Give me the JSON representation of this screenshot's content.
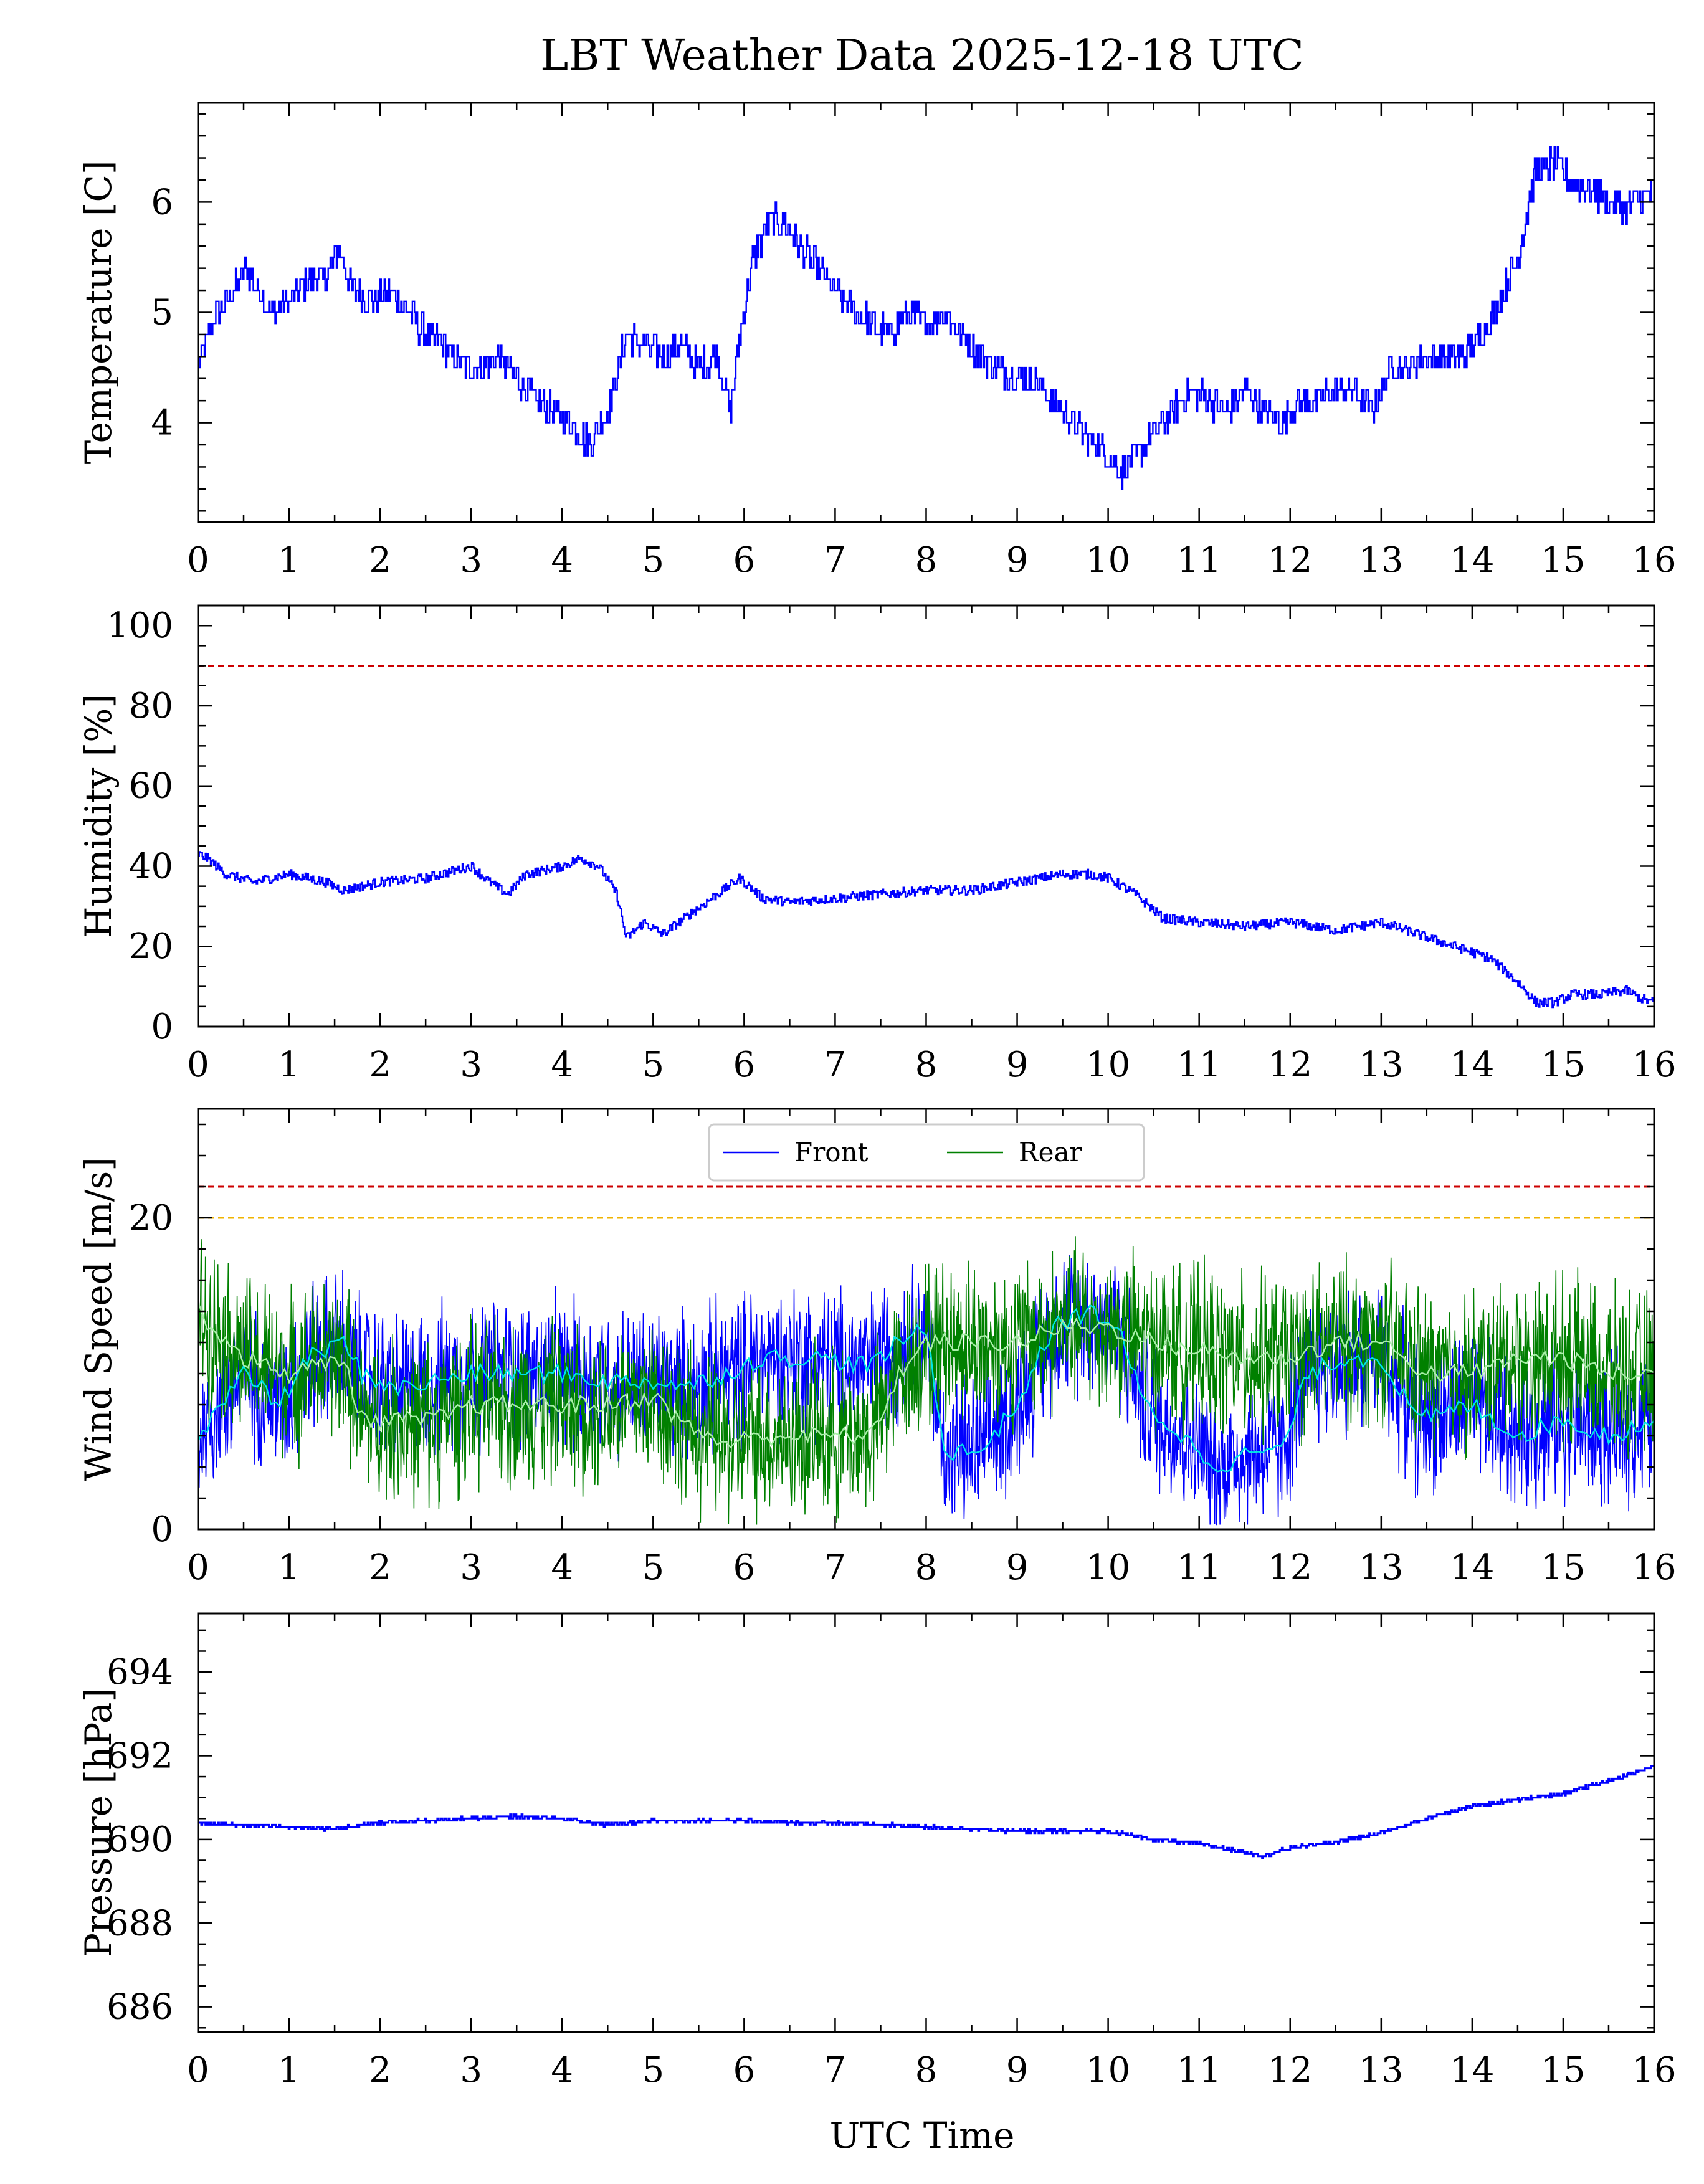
{
  "title": "LBT Weather Data 2025-12-18 UTC",
  "xlabel": "UTC Time",
  "colors": {
    "front": "#0000ff",
    "rear": "#008000",
    "front_avg": "#00e5e5",
    "rear_avg": "#a8f0a8",
    "danger": "#cc0000",
    "warning": "#f0b400"
  },
  "chart_data": [
    {
      "id": "temperature",
      "type": "line",
      "title": "LBT Weather Data 2025-12-18 UTC",
      "ylabel": "Temperature [C]",
      "xlim": [
        0,
        16
      ],
      "ylim": [
        3.1,
        6.9
      ],
      "xticks": [
        0,
        1,
        2,
        3,
        4,
        5,
        6,
        7,
        8,
        9,
        10,
        11,
        12,
        13,
        14,
        15,
        16
      ],
      "yticks": [
        4,
        5,
        6
      ],
      "series": [
        {
          "name": "Temperature",
          "color": "#0000ff",
          "x": [
            0,
            0.2,
            0.4,
            0.5,
            0.6,
            0.8,
            1.0,
            1.2,
            1.4,
            1.55,
            1.7,
            1.9,
            2.1,
            2.3,
            2.5,
            2.7,
            2.9,
            3.1,
            3.3,
            3.5,
            3.7,
            3.9,
            4.1,
            4.3,
            4.5,
            4.7,
            4.9,
            5.1,
            5.3,
            5.5,
            5.7,
            5.85,
            5.95,
            6.1,
            6.3,
            6.45,
            6.6,
            6.8,
            7.0,
            7.2,
            7.4,
            7.6,
            7.8,
            8.0,
            8.2,
            8.4,
            8.6,
            8.8,
            9.0,
            9.2,
            9.4,
            9.6,
            9.8,
            10.0,
            10.15,
            10.3,
            10.5,
            10.7,
            10.9,
            11.1,
            11.3,
            11.5,
            11.7,
            11.9,
            12.1,
            12.3,
            12.5,
            12.7,
            12.9,
            13.1,
            13.3,
            13.5,
            13.7,
            13.9,
            14.1,
            14.3,
            14.5,
            14.7,
            14.9,
            15.1,
            15.3,
            15.5,
            15.7,
            15.9,
            16.0
          ],
          "y": [
            4.5,
            5.0,
            5.2,
            5.4,
            5.3,
            5.0,
            5.1,
            5.3,
            5.3,
            5.6,
            5.2,
            5.1,
            5.2,
            5.0,
            4.8,
            4.7,
            4.5,
            4.5,
            4.6,
            4.4,
            4.2,
            4.1,
            4.0,
            3.8,
            4.1,
            4.8,
            4.7,
            4.6,
            4.7,
            4.5,
            4.6,
            4.1,
            4.8,
            5.5,
            5.85,
            5.8,
            5.6,
            5.4,
            5.2,
            5.0,
            4.9,
            4.8,
            5.0,
            4.9,
            5.0,
            4.8,
            4.6,
            4.5,
            4.4,
            4.4,
            4.2,
            4.0,
            3.85,
            3.7,
            3.55,
            3.7,
            3.9,
            4.1,
            4.3,
            4.2,
            4.1,
            4.3,
            4.1,
            4.0,
            4.2,
            4.2,
            4.3,
            4.3,
            4.1,
            4.5,
            4.5,
            4.6,
            4.6,
            4.6,
            4.8,
            5.1,
            5.5,
            6.3,
            6.35,
            6.2,
            6.1,
            6.0,
            5.95,
            6.05,
            6.1
          ]
        }
      ],
      "reference_lines": []
    },
    {
      "id": "humidity",
      "type": "line",
      "ylabel": "Humidity [%]",
      "xlim": [
        0,
        16
      ],
      "ylim": [
        0,
        105
      ],
      "xticks": [
        0,
        1,
        2,
        3,
        4,
        5,
        6,
        7,
        8,
        9,
        10,
        11,
        12,
        13,
        14,
        15,
        16
      ],
      "yticks": [
        0,
        20,
        40,
        60,
        80,
        100
      ],
      "series": [
        {
          "name": "Humidity",
          "color": "#0000ff",
          "x": [
            0,
            0.1,
            0.3,
            0.6,
            1.0,
            1.4,
            1.6,
            2.0,
            2.5,
            3.0,
            3.2,
            3.4,
            3.6,
            4.0,
            4.2,
            4.4,
            4.6,
            4.7,
            4.9,
            5.1,
            5.4,
            5.7,
            5.95,
            6.2,
            6.5,
            7.0,
            7.5,
            8.0,
            8.5,
            9.0,
            9.5,
            9.8,
            10.0,
            10.3,
            10.6,
            11.0,
            11.5,
            12.0,
            12.5,
            13.0,
            13.4,
            13.8,
            14.2,
            14.5,
            14.7,
            14.9,
            15.1,
            15.4,
            15.7,
            15.85,
            16.0
          ],
          "y": [
            43,
            42,
            38,
            36,
            38,
            36,
            34,
            36,
            37,
            40,
            36,
            33,
            38,
            40,
            42,
            40,
            33,
            22,
            26,
            23,
            28,
            33,
            37,
            32,
            31,
            32,
            33,
            34,
            34,
            36,
            38,
            38,
            37,
            33,
            27,
            26,
            25,
            26,
            24,
            26,
            23,
            20,
            17,
            11,
            6,
            6,
            8,
            8,
            9,
            7,
            6
          ]
        }
      ],
      "reference_lines": [
        {
          "y": 90,
          "color": "#cc0000",
          "style": "dashed"
        }
      ]
    },
    {
      "id": "wind",
      "type": "line",
      "ylabel": "Wind Speed [m/s]",
      "xlim": [
        0,
        16
      ],
      "ylim": [
        0,
        27
      ],
      "xticks": [
        0,
        1,
        2,
        3,
        4,
        5,
        6,
        7,
        8,
        9,
        10,
        11,
        12,
        13,
        14,
        15,
        16
      ],
      "yticks": [
        0,
        20
      ],
      "legend": {
        "entries": [
          "Front",
          "Rear"
        ],
        "position": "upper center"
      },
      "series": [
        {
          "name": "Front",
          "color": "#0000ff",
          "x": [
            0,
            0.5,
            0.9,
            1.2,
            1.6,
            1.8,
            2.2,
            3.0,
            3.5,
            4.0,
            4.5,
            5.0,
            5.4,
            5.8,
            6.2,
            6.8,
            7.4,
            7.7,
            8.0,
            8.2,
            8.6,
            9.0,
            9.4,
            9.8,
            10.1,
            10.4,
            10.8,
            11.2,
            11.6,
            11.9,
            12.2,
            12.6,
            13.0,
            13.4,
            14.0,
            14.5,
            15.0,
            15.5,
            16.0
          ],
          "y": [
            6,
            10,
            8,
            11,
            12,
            10,
            9,
            10,
            10,
            10,
            9.5,
            9.5,
            9.2,
            10,
            11,
            11,
            10.5,
            12,
            13,
            5,
            5,
            8,
            13,
            14,
            13,
            8,
            6,
            4,
            5,
            5,
            10,
            11,
            11,
            7,
            8,
            6,
            7,
            6,
            7
          ]
        },
        {
          "name": "Rear",
          "color": "#008000",
          "x": [
            0,
            0.5,
            1.0,
            1.6,
            1.8,
            2.2,
            2.6,
            3.0,
            3.4,
            4.0,
            4.5,
            5.0,
            5.4,
            5.8,
            6.2,
            6.8,
            7.4,
            7.7,
            8.0,
            8.4,
            9.0,
            9.5,
            10.0,
            10.5,
            11.0,
            11.5,
            12.0,
            12.5,
            13.0,
            13.5,
            14.0,
            14.5,
            15.0,
            15.5,
            16.0
          ],
          "y": [
            14,
            11,
            10,
            11,
            7,
            7,
            7,
            8,
            8,
            8,
            8,
            8.5,
            6.5,
            5.5,
            6,
            6,
            6,
            10,
            12,
            12,
            12,
            13,
            13,
            12,
            11.5,
            11,
            11,
            12,
            12,
            10,
            10,
            11,
            11,
            10,
            10
          ]
        }
      ],
      "reference_lines": [
        {
          "y": 22,
          "color": "#cc0000",
          "style": "dashed"
        },
        {
          "y": 20,
          "color": "#f0b400",
          "style": "dashed"
        }
      ]
    },
    {
      "id": "pressure",
      "type": "line",
      "ylabel": "Pressure [hPa]",
      "xlabel": "UTC Time",
      "xlim": [
        0,
        16
      ],
      "ylim": [
        685.4,
        695.4
      ],
      "xticks": [
        0,
        1,
        2,
        3,
        4,
        5,
        6,
        7,
        8,
        9,
        10,
        11,
        12,
        13,
        14,
        15,
        16
      ],
      "yticks": [
        686,
        688,
        690,
        692,
        694
      ],
      "series": [
        {
          "name": "Pressure",
          "color": "#0000ff",
          "x": [
            0,
            0.5,
            1.0,
            1.5,
            2.0,
            2.5,
            3.0,
            3.5,
            4.0,
            4.5,
            5.0,
            5.5,
            6.0,
            6.5,
            7.0,
            7.5,
            8.0,
            8.5,
            9.0,
            9.5,
            10.0,
            10.5,
            11.0,
            11.5,
            11.7,
            12.0,
            12.5,
            13.0,
            13.5,
            14.0,
            14.5,
            15.0,
            15.5,
            16.0
          ],
          "y": [
            690.4,
            690.35,
            690.3,
            690.25,
            690.4,
            690.45,
            690.5,
            690.55,
            690.5,
            690.35,
            690.45,
            690.45,
            690.45,
            690.4,
            690.4,
            690.35,
            690.3,
            690.25,
            690.2,
            690.2,
            690.2,
            690.0,
            689.9,
            689.7,
            689.6,
            689.8,
            689.95,
            690.15,
            690.5,
            690.8,
            690.95,
            691.1,
            691.4,
            691.75
          ]
        }
      ],
      "reference_lines": []
    }
  ]
}
